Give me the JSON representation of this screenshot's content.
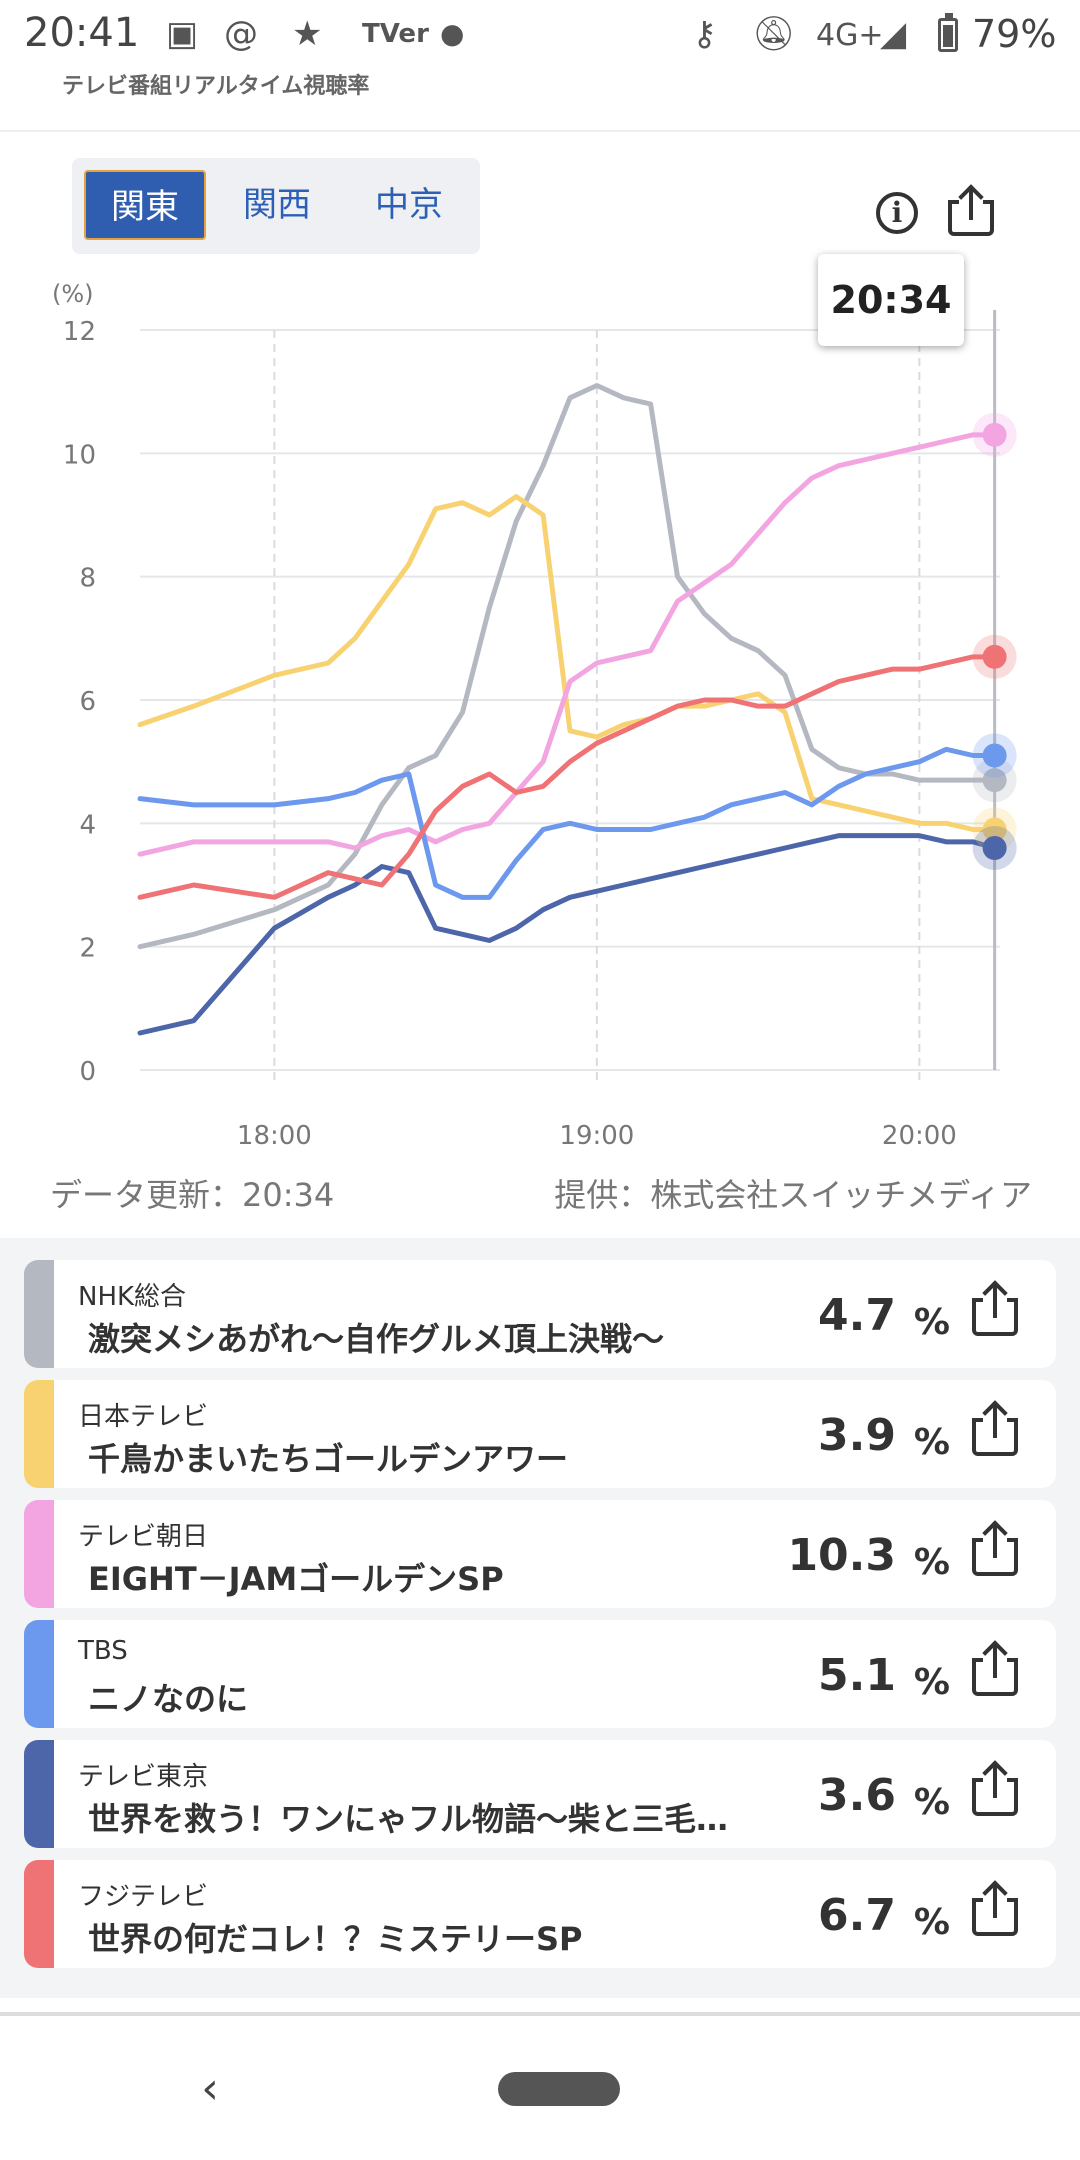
{
  "status_bar": {
    "time": "20:41",
    "notification_icons": [
      "gallery-icon",
      "threads-icon",
      "star-icon",
      "tver-icon",
      "dot-icon"
    ],
    "tver_label": "TVer",
    "network": "4G+",
    "battery": "79%",
    "battery_level": 0.79
  },
  "app": {
    "title": "テレビ番組リアルタイム視聴率"
  },
  "regions": {
    "tabs": [
      {
        "label": "関東",
        "active": true
      },
      {
        "label": "関西",
        "active": false
      },
      {
        "label": "中京",
        "active": false
      }
    ]
  },
  "chart": {
    "tooltip_time": "20:34",
    "update_text": "データ更新：20:34",
    "source_text": "提供：株式会社スイッチメディア"
  },
  "chart_data": {
    "type": "line",
    "ylabel": "(%)",
    "ylim": [
      0,
      12
    ],
    "yticks": [
      "0",
      "2",
      "4",
      "6",
      "8",
      "10",
      "12"
    ],
    "xticks": [
      "18:00",
      "19:00",
      "20:00"
    ],
    "x_minutes_from_1800": [
      -25,
      -15,
      0,
      10,
      15,
      20,
      25,
      30,
      35,
      40,
      45,
      50,
      55,
      60,
      65,
      70,
      75,
      80,
      85,
      90,
      95,
      100,
      105,
      110,
      115,
      120,
      125,
      130,
      134
    ],
    "grid": true,
    "series": [
      {
        "name": "NHK総合",
        "color": "#b4b9c1",
        "values": [
          2.0,
          2.2,
          2.6,
          3.0,
          3.5,
          4.3,
          4.9,
          5.1,
          5.8,
          7.5,
          8.9,
          9.8,
          10.9,
          11.1,
          10.9,
          10.8,
          8.0,
          7.4,
          7.0,
          6.8,
          6.4,
          5.2,
          4.9,
          4.8,
          4.8,
          4.7,
          4.7,
          4.7,
          4.7
        ]
      },
      {
        "name": "日本テレビ",
        "color": "#f8d270",
        "values": [
          5.6,
          5.9,
          6.4,
          6.6,
          7.0,
          7.6,
          8.2,
          9.1,
          9.2,
          9.0,
          9.3,
          9.0,
          5.5,
          5.4,
          5.6,
          5.7,
          5.9,
          5.9,
          6.0,
          6.1,
          5.8,
          4.4,
          4.3,
          4.2,
          4.1,
          4.0,
          4.0,
          3.9,
          3.9
        ]
      },
      {
        "name": "テレビ朝日",
        "color": "#f3a5e2",
        "values": [
          3.5,
          3.7,
          3.7,
          3.7,
          3.6,
          3.8,
          3.9,
          3.7,
          3.9,
          4.0,
          4.5,
          5.0,
          6.3,
          6.6,
          6.7,
          6.8,
          7.6,
          7.9,
          8.2,
          8.7,
          9.2,
          9.6,
          9.8,
          9.9,
          10.0,
          10.1,
          10.2,
          10.3,
          10.3
        ]
      },
      {
        "name": "TBS",
        "color": "#6c98ee",
        "values": [
          4.4,
          4.3,
          4.3,
          4.4,
          4.5,
          4.7,
          4.8,
          3.0,
          2.8,
          2.8,
          3.4,
          3.9,
          4.0,
          3.9,
          3.9,
          3.9,
          4.0,
          4.1,
          4.3,
          4.4,
          4.5,
          4.3,
          4.6,
          4.8,
          4.9,
          5.0,
          5.2,
          5.1,
          5.1
        ]
      },
      {
        "name": "テレビ東京",
        "color": "#4d65a9",
        "values": [
          0.6,
          0.8,
          2.3,
          2.8,
          3.0,
          3.3,
          3.2,
          2.3,
          2.2,
          2.1,
          2.3,
          2.6,
          2.8,
          2.9,
          3.0,
          3.1,
          3.2,
          3.3,
          3.4,
          3.5,
          3.6,
          3.7,
          3.8,
          3.8,
          3.8,
          3.8,
          3.7,
          3.7,
          3.6
        ]
      },
      {
        "name": "フジテレビ",
        "color": "#ef7274",
        "values": [
          2.8,
          3.0,
          2.8,
          3.2,
          3.1,
          3.0,
          3.5,
          4.2,
          4.6,
          4.8,
          4.5,
          4.6,
          5.0,
          5.3,
          5.5,
          5.7,
          5.9,
          6.0,
          6.0,
          5.9,
          5.9,
          6.1,
          6.3,
          6.4,
          6.5,
          6.5,
          6.6,
          6.7,
          6.7
        ]
      }
    ]
  },
  "programs": [
    {
      "channel": "NHK総合",
      "title": "激突メシあがれ〜自作グルメ頂上決戦〜",
      "rating": "4.7",
      "unit": "%",
      "color": "#b4b9c1"
    },
    {
      "channel": "日本テレビ",
      "title": "千鳥かまいたちゴールデンアワー",
      "rating": "3.9",
      "unit": "%",
      "color": "#f8d270"
    },
    {
      "channel": "テレビ朝日",
      "title": "EIGHT－JAMゴールデンSP",
      "rating": "10.3",
      "unit": "%",
      "color": "#f3a5e2"
    },
    {
      "channel": "TBS",
      "title": "ニノなのに",
      "rating": "5.1",
      "unit": "%",
      "color": "#6c98ee"
    },
    {
      "channel": "テレビ東京",
      "title": "世界を救う！ワンにゃフル物語〜柴と三毛…",
      "rating": "3.6",
      "unit": "%",
      "color": "#4d65a9"
    },
    {
      "channel": "フジテレビ",
      "title": "世界の何だコレ！？ミステリーSP",
      "rating": "6.7",
      "unit": "%",
      "color": "#ef7274"
    }
  ],
  "nav": {
    "back_icon": "chevron-left-icon",
    "home_icon": "home-pill-icon"
  }
}
